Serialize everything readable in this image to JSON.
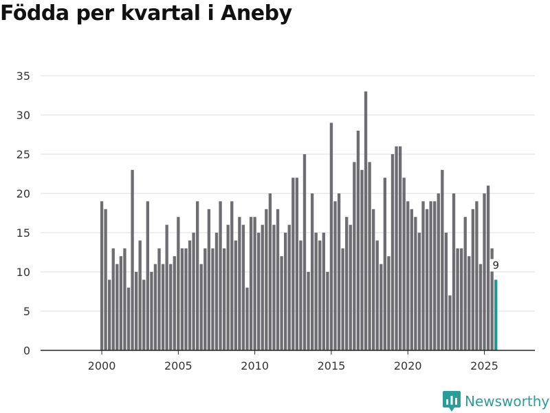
{
  "title": "Födda per kvartal i Aneby",
  "brand": {
    "name": "Newsworthy",
    "logo_icon": "newsworthy-logo-icon"
  },
  "colors": {
    "bar": "#6e6d72",
    "highlight": "#1a9a93",
    "grid": "#dcdcdc",
    "text": "#333333",
    "brand": "#2a9d99"
  },
  "chart_data": {
    "type": "bar",
    "title": "Födda per kvartal i Aneby",
    "xlabel": "",
    "ylabel": "",
    "ylim": [
      0,
      35
    ],
    "yticks": [
      0,
      5,
      10,
      15,
      20,
      25,
      30,
      35
    ],
    "xlim": [
      1996,
      2028.3
    ],
    "xticks": [
      2000,
      2005,
      2010,
      2015,
      2020,
      2025
    ],
    "grid": true,
    "start": {
      "year": 2000,
      "quarter": 1
    },
    "values": [
      19,
      18,
      9,
      13,
      11,
      12,
      13,
      8,
      23,
      10,
      14,
      9,
      19,
      10,
      11,
      13,
      11,
      16,
      11,
      12,
      17,
      13,
      13,
      14,
      15,
      19,
      11,
      13,
      18,
      13,
      15,
      19,
      13,
      16,
      19,
      14,
      17,
      16,
      8,
      17,
      17,
      15,
      16,
      18,
      20,
      16,
      18,
      12,
      15,
      16,
      22,
      22,
      14,
      25,
      10,
      20,
      15,
      14,
      15,
      10,
      29,
      19,
      20,
      13,
      17,
      16,
      24,
      28,
      23,
      33,
      24,
      18,
      14,
      11,
      22,
      12,
      25,
      26,
      26,
      22,
      19,
      18,
      17,
      15,
      19,
      18,
      19,
      19,
      20,
      23,
      15,
      7,
      20,
      13,
      13,
      17,
      12,
      18,
      19,
      11,
      20,
      21,
      13,
      9
    ],
    "highlight_last": true,
    "last_label": "9"
  }
}
